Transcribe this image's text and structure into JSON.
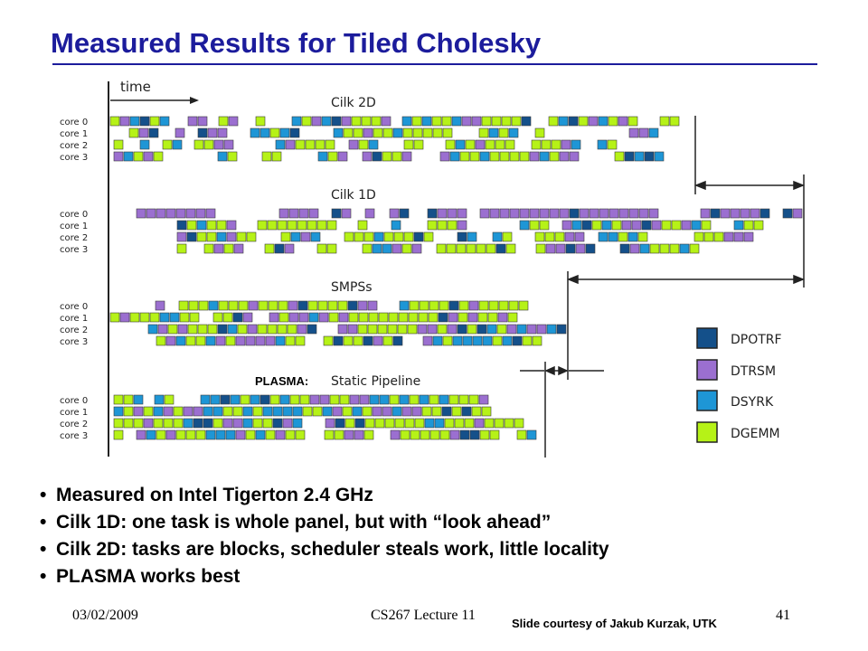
{
  "title": "Measured Results for Tiled Cholesky",
  "diagram": {
    "time_label": "time",
    "panels": [
      {
        "title": "Cilk 2D",
        "cores": [
          "core 0",
          "core 1",
          "core 2",
          "core 3"
        ]
      },
      {
        "title": "Cilk 1D",
        "cores": [
          "core 0",
          "core 1",
          "core 2",
          "core 3"
        ]
      },
      {
        "title": "SMPSs",
        "cores": [
          "core 0",
          "core 1",
          "core 2",
          "core 3"
        ]
      },
      {
        "title": "Static Pipeline",
        "prefix": "PLASMA:",
        "cores": [
          "core 0",
          "core 1",
          "core 2",
          "core 3"
        ]
      }
    ],
    "legend": [
      {
        "label": "DPOTRF",
        "color": "#14508a"
      },
      {
        "label": "DTRSM",
        "color": "#9b6fd0"
      },
      {
        "label": "DSYRK",
        "color": "#1e96d6"
      },
      {
        "label": "DGEMM",
        "color": "#b6f217"
      }
    ]
  },
  "bullets": [
    "Measured on Intel Tigerton 2.4 GHz",
    "Cilk 1D: one task is whole panel, but with “look ahead”",
    "Cilk 2D: tasks are blocks, scheduler steals work, little locality",
    "PLASMA works best"
  ],
  "footer": {
    "date": "03/02/2009",
    "lecture": "CS267 Lecture 11",
    "page": "41",
    "credit": "Slide courtesy of Jakub Kurzak, UTK"
  }
}
